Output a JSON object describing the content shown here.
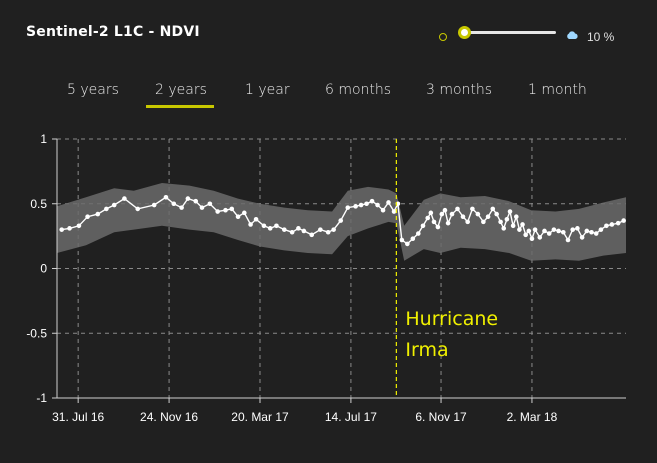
{
  "header": {
    "title": "Sentinel-2 L1C - NDVI",
    "sun_icon": "sun-icon",
    "cloud_icon": "cloud-icon",
    "cloud_coverage": "10 %",
    "cloud_slider_fraction": 0.1
  },
  "tabs": [
    {
      "label": "5 years"
    },
    {
      "label": "2 years",
      "active": true
    },
    {
      "label": "1 year"
    },
    {
      "label": "6 months"
    },
    {
      "label": "3 months"
    },
    {
      "label": "1 month"
    }
  ],
  "colors": {
    "accent": "#c8c800",
    "annotation": "#f0f000",
    "band": "#6b6b6b",
    "line": "#ffffff",
    "background": "#202020"
  },
  "chart_data": {
    "type": "line",
    "ylim": [
      -1,
      1
    ],
    "yticks": [
      1,
      0.5,
      0,
      -0.5,
      -1
    ],
    "yticklabels": [
      "1",
      "0.5",
      "0",
      "-0.5",
      "-1"
    ],
    "xticks": [
      "2016-07-31",
      "2016-11-24",
      "2017-03-20",
      "2017-07-14",
      "2017-11-06",
      "2018-03-02"
    ],
    "xticklabels": [
      "31. Jul 16",
      "24. Nov 16",
      "20. Mar 17",
      "14. Jul 17",
      "6. Nov 17",
      "2. Mar 18"
    ],
    "xlim": [
      "2016-07-04",
      "2018-06-30"
    ],
    "grid": true,
    "annotation": {
      "text_line1": "Hurricane",
      "text_line2": "Irma",
      "date": "2017-09-10"
    },
    "series": [
      {
        "kind": "mean",
        "x": [
          "2016-07-10",
          "2016-07-20",
          "2016-08-01",
          "2016-08-12",
          "2016-08-25",
          "2016-09-05",
          "2016-09-15",
          "2016-09-28",
          "2016-10-15",
          "2016-11-05",
          "2016-11-20",
          "2016-11-30",
          "2016-12-10",
          "2016-12-18",
          "2016-12-28",
          "2017-01-05",
          "2017-01-15",
          "2017-01-25",
          "2017-02-04",
          "2017-02-12",
          "2017-02-20",
          "2017-02-28",
          "2017-03-08",
          "2017-03-15",
          "2017-03-25",
          "2017-04-02",
          "2017-04-10",
          "2017-04-20",
          "2017-04-30",
          "2017-05-08",
          "2017-05-15",
          "2017-05-25",
          "2017-06-05",
          "2017-06-15",
          "2017-06-22",
          "2017-07-01",
          "2017-07-10",
          "2017-07-20",
          "2017-07-27",
          "2017-08-03",
          "2017-08-10",
          "2017-08-17",
          "2017-08-24",
          "2017-08-31",
          "2017-09-07",
          "2017-09-12",
          "2017-09-17",
          "2017-09-24",
          "2017-10-01",
          "2017-10-08",
          "2017-10-14",
          "2017-10-20",
          "2017-10-24",
          "2017-10-28",
          "2017-11-02",
          "2017-11-07",
          "2017-11-11",
          "2017-11-15",
          "2017-11-20",
          "2017-11-27",
          "2017-12-04",
          "2017-12-10",
          "2017-12-16",
          "2017-12-23",
          "2017-12-30",
          "2018-01-05",
          "2018-01-11",
          "2018-01-16",
          "2018-01-21",
          "2018-01-25",
          "2018-01-29",
          "2018-02-02",
          "2018-02-06",
          "2018-02-10",
          "2018-02-14",
          "2018-02-18",
          "2018-02-22",
          "2018-02-26",
          "2018-03-02",
          "2018-03-06",
          "2018-03-12",
          "2018-03-18",
          "2018-03-24",
          "2018-03-30",
          "2018-04-05",
          "2018-04-11",
          "2018-04-17",
          "2018-04-23",
          "2018-04-29",
          "2018-05-05",
          "2018-05-11",
          "2018-05-17",
          "2018-05-23",
          "2018-05-29",
          "2018-06-05",
          "2018-06-12",
          "2018-06-20",
          "2018-06-27"
        ],
        "y": [
          0.3,
          0.31,
          0.33,
          0.4,
          0.42,
          0.46,
          0.49,
          0.54,
          0.46,
          0.49,
          0.55,
          0.5,
          0.47,
          0.54,
          0.52,
          0.47,
          0.5,
          0.44,
          0.45,
          0.46,
          0.4,
          0.43,
          0.34,
          0.38,
          0.33,
          0.31,
          0.33,
          0.3,
          0.28,
          0.31,
          0.29,
          0.26,
          0.3,
          0.28,
          0.3,
          0.37,
          0.47,
          0.48,
          0.49,
          0.5,
          0.52,
          0.49,
          0.45,
          0.51,
          0.44,
          0.5,
          0.22,
          0.19,
          0.23,
          0.27,
          0.33,
          0.39,
          0.43,
          0.36,
          0.32,
          0.42,
          0.45,
          0.35,
          0.42,
          0.46,
          0.4,
          0.36,
          0.46,
          0.42,
          0.36,
          0.4,
          0.46,
          0.42,
          0.36,
          0.31,
          0.38,
          0.44,
          0.33,
          0.4,
          0.3,
          0.34,
          0.26,
          0.29,
          0.23,
          0.3,
          0.24,
          0.29,
          0.27,
          0.3,
          0.29,
          0.28,
          0.22,
          0.3,
          0.31,
          0.24,
          0.29,
          0.28,
          0.27,
          0.3,
          0.33,
          0.34,
          0.35,
          0.37
        ]
      },
      {
        "kind": "band_upper",
        "x": [
          "2016-07-04",
          "2016-08-10",
          "2016-09-15",
          "2016-10-10",
          "2016-11-15",
          "2016-12-20",
          "2017-01-20",
          "2017-02-20",
          "2017-03-20",
          "2017-04-20",
          "2017-05-20",
          "2017-06-20",
          "2017-07-10",
          "2017-08-05",
          "2017-08-31",
          "2017-09-10",
          "2017-09-20",
          "2017-10-15",
          "2017-11-05",
          "2017-12-01",
          "2018-01-01",
          "2018-02-01",
          "2018-03-01",
          "2018-04-01",
          "2018-05-01",
          "2018-06-01",
          "2018-06-30"
        ],
        "y": [
          0.48,
          0.55,
          0.62,
          0.6,
          0.66,
          0.64,
          0.6,
          0.54,
          0.5,
          0.47,
          0.45,
          0.44,
          0.6,
          0.63,
          0.61,
          0.58,
          0.33,
          0.53,
          0.58,
          0.55,
          0.56,
          0.52,
          0.45,
          0.44,
          0.46,
          0.51,
          0.55
        ]
      },
      {
        "kind": "band_lower",
        "x": [
          "2016-07-04",
          "2016-08-10",
          "2016-09-15",
          "2016-10-10",
          "2016-11-15",
          "2016-12-20",
          "2017-01-20",
          "2017-02-20",
          "2017-03-20",
          "2017-04-20",
          "2017-05-20",
          "2017-06-20",
          "2017-07-10",
          "2017-08-05",
          "2017-08-31",
          "2017-09-10",
          "2017-09-20",
          "2017-10-15",
          "2017-11-05",
          "2017-12-01",
          "2018-01-01",
          "2018-02-01",
          "2018-03-01",
          "2018-04-01",
          "2018-05-01",
          "2018-06-01",
          "2018-06-30"
        ],
        "y": [
          0.12,
          0.18,
          0.28,
          0.3,
          0.33,
          0.3,
          0.28,
          0.22,
          0.17,
          0.14,
          0.12,
          0.11,
          0.25,
          0.31,
          0.36,
          0.35,
          0.06,
          0.15,
          0.12,
          0.16,
          0.15,
          0.12,
          0.06,
          0.07,
          0.06,
          0.1,
          0.12
        ]
      }
    ]
  }
}
